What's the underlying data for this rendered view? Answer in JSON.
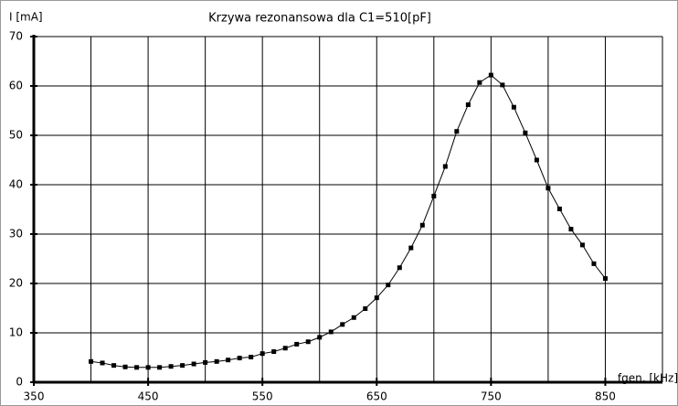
{
  "chart_data": {
    "type": "line",
    "title": "Krzywa rezonansowa dla C1=510[pF]",
    "y_label": "I [mA]",
    "x_label": "fgen. [kHz]",
    "x": [
      400,
      410,
      420,
      430,
      440,
      450,
      460,
      470,
      480,
      490,
      500,
      510,
      520,
      530,
      540,
      550,
      560,
      570,
      580,
      590,
      600,
      610,
      620,
      630,
      640,
      650,
      660,
      670,
      680,
      690,
      700,
      710,
      720,
      730,
      740,
      750,
      760,
      770,
      780,
      790,
      800,
      810,
      820,
      830,
      840,
      850
    ],
    "series": [
      {
        "name": "I",
        "color": "#000000",
        "values": [
          4.2,
          3.9,
          3.4,
          3.1,
          3.0,
          3.0,
          3.0,
          3.2,
          3.4,
          3.7,
          4.0,
          4.2,
          4.5,
          4.9,
          5.1,
          5.8,
          6.2,
          6.9,
          7.7,
          8.2,
          9.1,
          10.2,
          11.7,
          13.1,
          14.9,
          17.1,
          19.7,
          23.2,
          27.2,
          31.8,
          37.7,
          43.7,
          50.8,
          56.2,
          60.7,
          62.2,
          60.2,
          55.7,
          50.5,
          45.0,
          39.3,
          35.1,
          31.0,
          27.8,
          24.0,
          21.0
        ]
      }
    ],
    "xlim": [
      350,
      900
    ],
    "xticks": [
      350,
      450,
      550,
      650,
      750,
      850
    ],
    "x_minor_grid": [
      400,
      500,
      600,
      700,
      800,
      900
    ],
    "ylim": [
      0,
      70
    ],
    "yticks": [
      0,
      10,
      20,
      30,
      40,
      50,
      60,
      70
    ],
    "grid": true
  }
}
